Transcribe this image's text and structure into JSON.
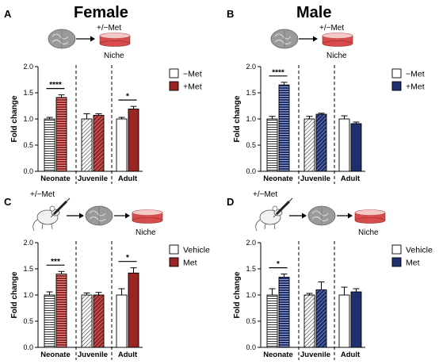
{
  "headers": {
    "female": "Female",
    "male": "Male"
  },
  "colors": {
    "red": "#9b2522",
    "blue": "#1f2f6e",
    "dish_top": "#f6c9c9",
    "dish_body": "#d94c4c",
    "brain": "#9a9a9a"
  },
  "chart_data": [
    {
      "panel": "A",
      "type": "bar",
      "ylabel": "Fold change",
      "ylim": [
        0,
        2.0
      ],
      "yticks": [
        "0.0",
        "0.5",
        "1.0",
        "1.5",
        "2.0"
      ],
      "groups": [
        "Neonate",
        "Juvenile",
        "Adult"
      ],
      "scheme": {
        "above": "+/−Met",
        "below": "Niche",
        "mouse": false
      },
      "legend": [
        "−Met",
        "+Met"
      ],
      "series": [
        {
          "name": "−Met",
          "values": [
            1.0,
            1.0,
            1.0
          ],
          "errors": [
            0.03,
            0.1,
            0.03
          ]
        },
        {
          "name": "+Met",
          "values": [
            1.41,
            1.07,
            1.19
          ],
          "errors": [
            0.05,
            0.03,
            0.05
          ]
        }
      ],
      "significance": [
        {
          "group": 0,
          "label": "****"
        },
        {
          "group": 2,
          "label": "*"
        }
      ],
      "color": "red"
    },
    {
      "panel": "B",
      "type": "bar",
      "ylabel": "Fold change",
      "ylim": [
        0,
        2.0
      ],
      "yticks": [
        "0.0",
        "0.5",
        "1.0",
        "1.5",
        "2.0"
      ],
      "groups": [
        "Neonate",
        "Juvenile",
        "Adult"
      ],
      "scheme": {
        "above": "+/−Met",
        "below": "Niche",
        "mouse": false
      },
      "legend": [
        "−Met",
        "+Met"
      ],
      "series": [
        {
          "name": "−Met",
          "values": [
            1.0,
            1.0,
            1.0
          ],
          "errors": [
            0.05,
            0.05,
            0.06
          ]
        },
        {
          "name": "+Met",
          "values": [
            1.65,
            1.09,
            0.91
          ],
          "errors": [
            0.05,
            0.02,
            0.03
          ]
        }
      ],
      "significance": [
        {
          "group": 0,
          "label": "****"
        }
      ],
      "color": "blue"
    },
    {
      "panel": "C",
      "type": "bar",
      "ylabel": "Fold change",
      "ylim": [
        0,
        2.0
      ],
      "yticks": [
        "0.0",
        "0.5",
        "1.0",
        "1.5",
        "2.0"
      ],
      "groups": [
        "Neonate",
        "Juvenile",
        "Adult"
      ],
      "scheme": {
        "above": "+/−Met",
        "below": "Niche",
        "mouse": true
      },
      "legend": [
        "Vehicle",
        "Met"
      ],
      "series": [
        {
          "name": "Vehicle",
          "values": [
            1.0,
            1.0,
            1.0
          ],
          "errors": [
            0.06,
            0.04,
            0.12
          ]
        },
        {
          "name": "Met",
          "values": [
            1.4,
            1.0,
            1.42
          ],
          "errors": [
            0.05,
            0.05,
            0.1
          ]
        }
      ],
      "significance": [
        {
          "group": 0,
          "label": "***"
        },
        {
          "group": 2,
          "label": "*"
        }
      ],
      "color": "red"
    },
    {
      "panel": "D",
      "type": "bar",
      "ylabel": "Fold change",
      "ylim": [
        0,
        2.0
      ],
      "yticks": [
        "0.0",
        "0.5",
        "1.0",
        "1.5",
        "2.0"
      ],
      "groups": [
        "Neonate",
        "Juvenile",
        "Adult"
      ],
      "scheme": {
        "above": "+/−Met",
        "below": "Niche",
        "mouse": true
      },
      "legend": [
        "Vehicle",
        "Met"
      ],
      "series": [
        {
          "name": "Vehicle",
          "values": [
            1.0,
            1.0,
            1.0
          ],
          "errors": [
            0.12,
            0.03,
            0.15
          ]
        },
        {
          "name": "Met",
          "values": [
            1.34,
            1.1,
            1.06
          ],
          "errors": [
            0.06,
            0.15,
            0.06
          ]
        }
      ],
      "significance": [
        {
          "group": 0,
          "label": "*"
        }
      ],
      "color": "blue"
    }
  ]
}
